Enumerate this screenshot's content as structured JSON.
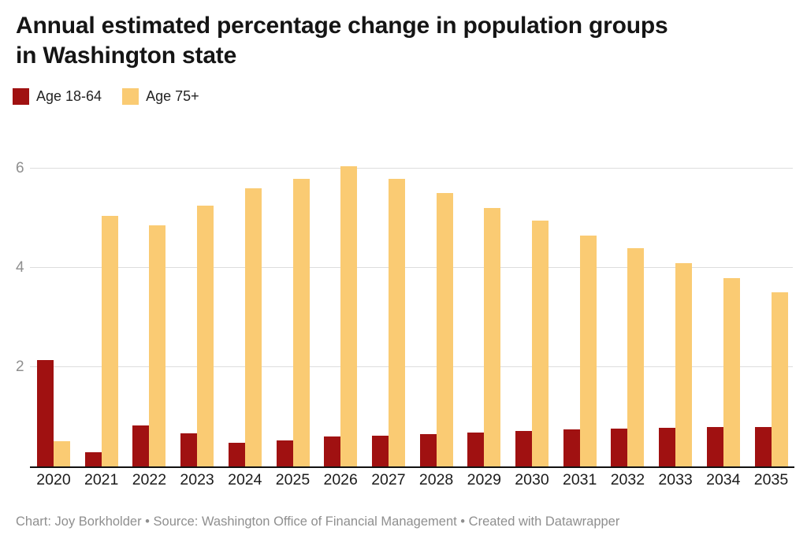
{
  "title": {
    "line1": "Annual estimated percentage change in population groups",
    "line2": "in Washington state"
  },
  "legend": {
    "items": [
      {
        "label": "Age 18-64",
        "color": "#a01111"
      },
      {
        "label": "Age 75+",
        "color": "#facb73"
      }
    ]
  },
  "footer": "Chart: Joy Borkholder • Source: Washington Office of Financial Management • Created with Datawrapper",
  "colors": {
    "age_18_64": "#a01111",
    "age_75_plus": "#facb73",
    "gridline": "#dddddd",
    "axis_line": "#111111",
    "tick_label": "#8f8f8f"
  },
  "chart_data": {
    "type": "bar",
    "title": "Annual estimated percentage change in population groups in Washington state",
    "categories": [
      "2020",
      "2021",
      "2022",
      "2023",
      "2024",
      "2025",
      "2026",
      "2027",
      "2028",
      "2029",
      "2030",
      "2031",
      "2032",
      "2033",
      "2034",
      "2035"
    ],
    "series": [
      {
        "name": "Age 18-64",
        "color": "#a01111",
        "values": [
          2.15,
          0.29,
          0.82,
          0.66,
          0.48,
          0.52,
          0.6,
          0.62,
          0.65,
          0.69,
          0.72,
          0.75,
          0.76,
          0.78,
          0.79,
          0.8
        ]
      },
      {
        "name": "Age 75+",
        "color": "#facb73",
        "values": [
          0.5,
          5.05,
          4.85,
          5.25,
          5.6,
          5.8,
          6.05,
          5.8,
          5.5,
          5.2,
          4.95,
          4.65,
          4.4,
          4.1,
          3.8,
          3.5
        ]
      }
    ],
    "xlabel": "",
    "ylabel": "",
    "ylim": [
      0,
      6.45
    ],
    "y_ticks": [
      2,
      4,
      6
    ],
    "grid": true,
    "legend_position": "top-left",
    "unit": "percent"
  }
}
